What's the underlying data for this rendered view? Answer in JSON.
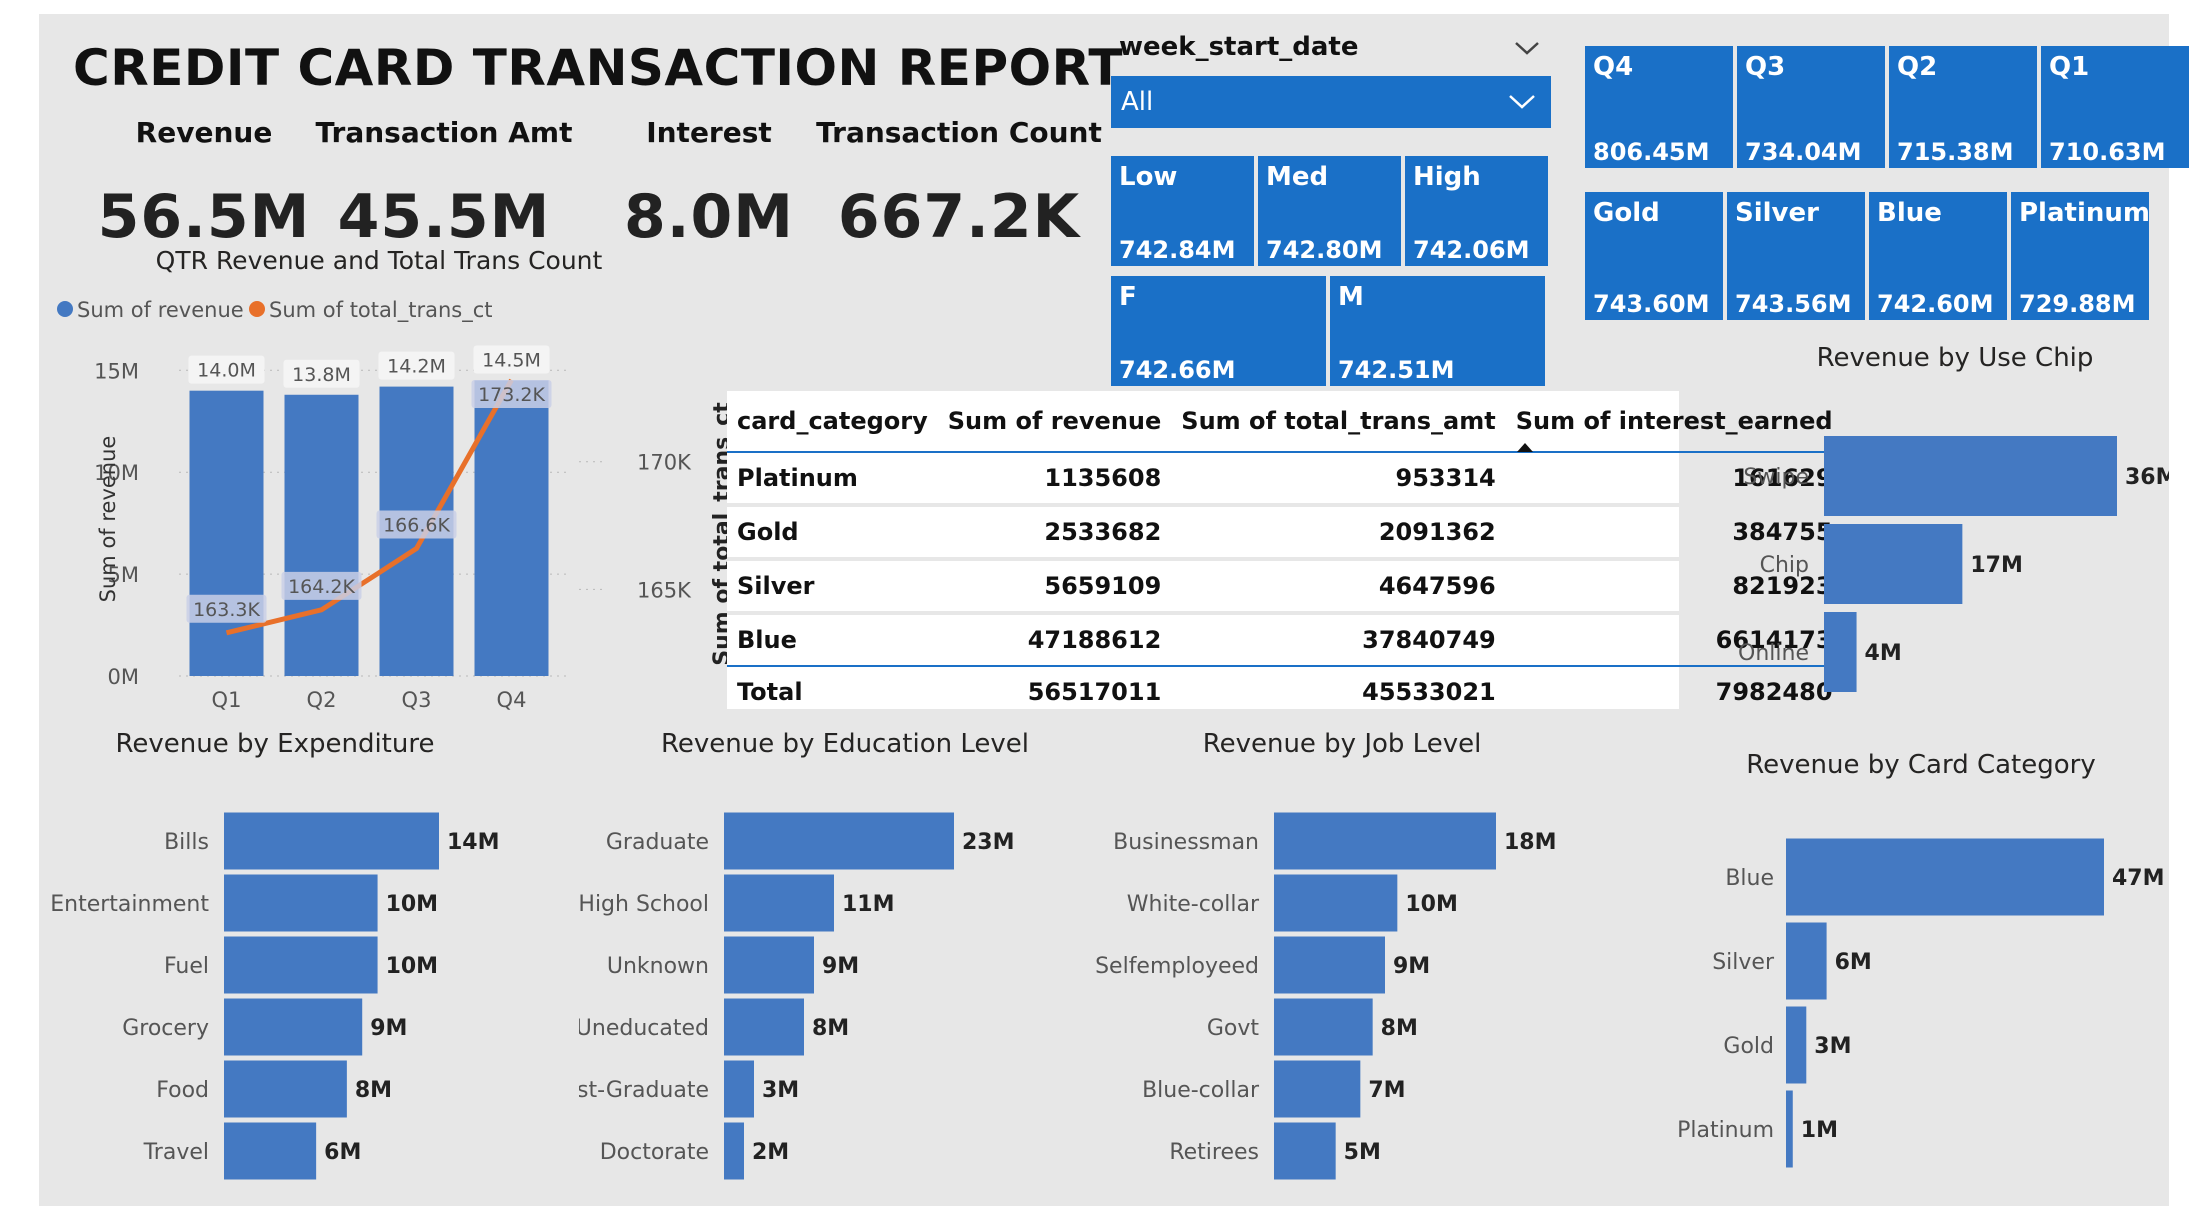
{
  "report_title": "CREDIT CARD TRANSACTION REPORT",
  "kpis": [
    {
      "label": "Revenue",
      "value": "56.5M"
    },
    {
      "label": "Transaction Amt",
      "value": "45.5M"
    },
    {
      "label": "Interest",
      "value": "8.0M"
    },
    {
      "label": "Transaction Count",
      "value": "667.2K"
    }
  ],
  "slicer": {
    "label": "week_start_date",
    "value": "All"
  },
  "colors": {
    "primary": "#1a70c7",
    "bar": "#4479c2",
    "line": "#e8702a",
    "background": "#e7e7e7"
  },
  "tiles_quarter": [
    {
      "name": "Q4",
      "value": "806.45M"
    },
    {
      "name": "Q3",
      "value": "734.04M"
    },
    {
      "name": "Q2",
      "value": "715.38M"
    },
    {
      "name": "Q1",
      "value": "710.63M"
    }
  ],
  "tiles_income": [
    {
      "name": "Low",
      "value": "742.84M"
    },
    {
      "name": "Med",
      "value": "742.80M"
    },
    {
      "name": "High",
      "value": "742.06M"
    }
  ],
  "tiles_gender": [
    {
      "name": "F",
      "value": "742.66M"
    },
    {
      "name": "M",
      "value": "742.51M"
    }
  ],
  "tiles_card": [
    {
      "name": "Gold",
      "value": "743.60M"
    },
    {
      "name": "Silver",
      "value": "743.56M"
    },
    {
      "name": "Blue",
      "value": "742.60M"
    },
    {
      "name": "Platinum",
      "value": "729.88M"
    }
  ],
  "table": {
    "headers": [
      "card_category",
      "Sum of revenue",
      "Sum of total_trans_amt",
      "Sum of interest_earned"
    ],
    "rows": [
      [
        "Platinum",
        "1135608",
        "953314",
        "161629"
      ],
      [
        "Gold",
        "2533682",
        "2091362",
        "384755"
      ],
      [
        "Silver",
        "5659109",
        "4647596",
        "821923"
      ],
      [
        "Blue",
        "47188612",
        "37840749",
        "6614173"
      ]
    ],
    "total": [
      "Total",
      "56517011",
      "45533021",
      "7982480"
    ]
  },
  "chart_data": [
    {
      "type": "bar",
      "title": "QTR Revenue and Total Trans Count",
      "categories": [
        "Q1",
        "Q2",
        "Q3",
        "Q4"
      ],
      "series": [
        {
          "name": "Sum of revenue",
          "values": [
            14.0,
            13.8,
            14.2,
            14.5
          ],
          "labels": [
            "14.0M",
            "13.8M",
            "14.2M",
            "14.5M"
          ],
          "axis": "left"
        },
        {
          "name": "Sum of total_trans_ct",
          "type": "line",
          "values": [
            163.3,
            164.2,
            166.6,
            173.2
          ],
          "labels": [
            "163.3K",
            "164.2K",
            "166.6K",
            "173.2K"
          ],
          "axis": "right"
        }
      ],
      "ylabel": "Sum of revenue",
      "y2label": "Sum of total_trans_ct",
      "ylim": [
        0,
        15.8
      ],
      "yticks": [
        0,
        5,
        10,
        15
      ],
      "ytick_labels": [
        "0M",
        "5M",
        "10M",
        "15M"
      ],
      "y2lim": [
        162,
        173.2
      ],
      "y2ticks": [
        165,
        170
      ],
      "y2tick_labels": [
        "165K",
        "170K"
      ],
      "legend": "top-left",
      "grid": true
    },
    {
      "type": "bar",
      "orientation": "horizontal",
      "title": "Revenue by Use Chip",
      "categories": [
        "Swipe",
        "Chip",
        "Online"
      ],
      "values": [
        36,
        17,
        4
      ],
      "labels": [
        "36M",
        "17M",
        "4M"
      ]
    },
    {
      "type": "bar",
      "orientation": "horizontal",
      "title": "Revenue by Expenditure",
      "categories": [
        "Bills",
        "Entertainment",
        "Fuel",
        "Grocery",
        "Food",
        "Travel"
      ],
      "values": [
        14,
        10,
        10,
        9,
        8,
        6
      ],
      "labels": [
        "14M",
        "10M",
        "10M",
        "9M",
        "8M",
        "6M"
      ]
    },
    {
      "type": "bar",
      "orientation": "horizontal",
      "title": "Revenue by Education Level",
      "categories": [
        "Graduate",
        "High School",
        "Unknown",
        "Uneducated",
        "Post-Graduate",
        "Doctorate"
      ],
      "values": [
        23,
        11,
        9,
        8,
        3,
        2
      ],
      "labels": [
        "23M",
        "11M",
        "9M",
        "8M",
        "3M",
        "2M"
      ]
    },
    {
      "type": "bar",
      "orientation": "horizontal",
      "title": "Revenue by Job Level",
      "categories": [
        "Businessman",
        "White-collar",
        "Selfemployeed",
        "Govt",
        "Blue-collar",
        "Retirees"
      ],
      "values": [
        18,
        10,
        9,
        8,
        7,
        5
      ],
      "labels": [
        "18M",
        "10M",
        "9M",
        "8M",
        "7M",
        "5M"
      ]
    },
    {
      "type": "bar",
      "orientation": "horizontal",
      "title": "Revenue by Card Category",
      "categories": [
        "Blue",
        "Silver",
        "Gold",
        "Platinum"
      ],
      "values": [
        47,
        6,
        3,
        1
      ],
      "labels": [
        "47M",
        "6M",
        "3M",
        "1M"
      ]
    }
  ]
}
